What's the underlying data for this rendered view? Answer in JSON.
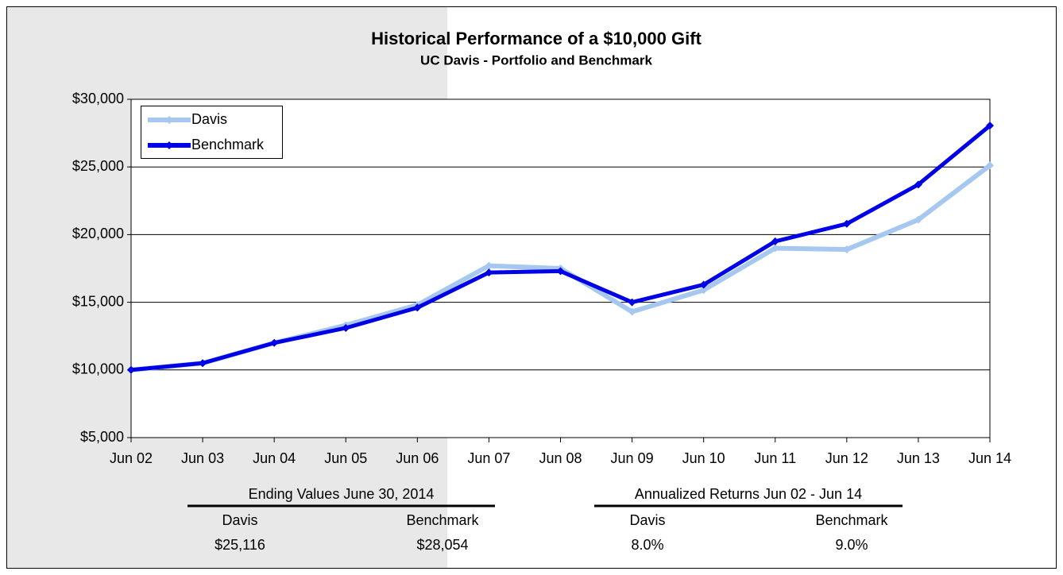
{
  "chart_data": {
    "type": "line",
    "title": "Historical Performance of a $10,000 Gift",
    "subtitle": "UC Davis - Portfolio and Benchmark",
    "categories": [
      "Jun 02",
      "Jun 03",
      "Jun 04",
      "Jun 05",
      "Jun 06",
      "Jun 07",
      "Jun 08",
      "Jun 09",
      "Jun 10",
      "Jun 11",
      "Jun 12",
      "Jun 13",
      "Jun 14"
    ],
    "series": [
      {
        "name": "Davis",
        "color": "#a6c8f0",
        "values": [
          10000,
          10500,
          12000,
          13300,
          14800,
          17700,
          17500,
          14300,
          15900,
          19000,
          18900,
          21100,
          25116
        ]
      },
      {
        "name": "Benchmark",
        "color": "#0000e6",
        "values": [
          10000,
          10500,
          12000,
          13100,
          14600,
          17200,
          17300,
          15000,
          16300,
          19500,
          20800,
          23700,
          28054
        ]
      }
    ],
    "ylim": [
      5000,
      30000
    ],
    "yticks": [
      {
        "value": 5000,
        "label": "$5,000"
      },
      {
        "value": 10000,
        "label": "$10,000"
      },
      {
        "value": 15000,
        "label": "$15,000"
      },
      {
        "value": 20000,
        "label": "$20,000"
      },
      {
        "value": 25000,
        "label": "$25,000"
      },
      {
        "value": 30000,
        "label": "$30,000"
      }
    ],
    "grid": true,
    "legend": "top-left"
  },
  "tables": [
    {
      "title": "Ending Values June 30, 2014",
      "columns": [
        "Davis",
        "Benchmark"
      ],
      "values": [
        "$25,116",
        "$28,054"
      ]
    },
    {
      "title": "Annualized Returns Jun 02 - Jun 14",
      "columns": [
        "Davis",
        "Benchmark"
      ],
      "values": [
        "8.0%",
        "9.0%"
      ]
    }
  ]
}
